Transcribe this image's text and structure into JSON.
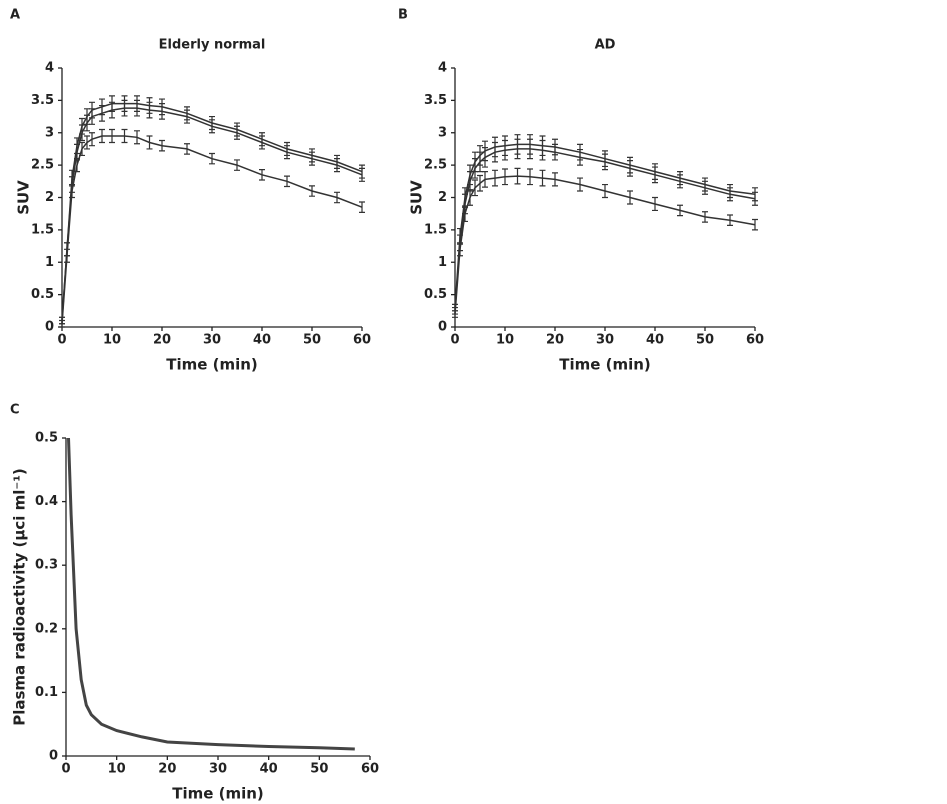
{
  "chart_data": [
    {
      "type": "line",
      "panel": "A",
      "title": "Elderly normal",
      "xlabel": "Time (min)",
      "ylabel": "SUV",
      "x": [
        0,
        1,
        2,
        3,
        4,
        5,
        6,
        8,
        10,
        12.5,
        15,
        17.5,
        20,
        25,
        30,
        35,
        40,
        45,
        50,
        55,
        60
      ],
      "xlim": [
        0,
        60
      ],
      "xticks": [
        0,
        10,
        20,
        30,
        40,
        50,
        60
      ],
      "ylim": [
        0,
        4
      ],
      "yticks": [
        0,
        0.5,
        1,
        1.5,
        2,
        2.5,
        3,
        3.5,
        4
      ],
      "series": [
        {
          "color": "#333333",
          "values": [
            0.1,
            1.2,
            2.3,
            2.8,
            3.1,
            3.25,
            3.35,
            3.4,
            3.45,
            3.45,
            3.45,
            3.42,
            3.4,
            3.3,
            3.15,
            3.05,
            2.9,
            2.75,
            2.65,
            2.55,
            2.4
          ],
          "errors": [
            0.05,
            0.1,
            0.12,
            0.12,
            0.12,
            0.12,
            0.12,
            0.12,
            0.12,
            0.12,
            0.12,
            0.12,
            0.12,
            0.1,
            0.1,
            0.1,
            0.1,
            0.1,
            0.1,
            0.1,
            0.1
          ]
        },
        {
          "color": "#333333",
          "values": [
            0.1,
            1.2,
            2.2,
            2.7,
            3.0,
            3.15,
            3.25,
            3.3,
            3.35,
            3.38,
            3.38,
            3.35,
            3.33,
            3.25,
            3.1,
            3.0,
            2.85,
            2.7,
            2.6,
            2.5,
            2.35
          ],
          "errors": [
            0.05,
            0.1,
            0.12,
            0.12,
            0.12,
            0.12,
            0.12,
            0.12,
            0.12,
            0.12,
            0.12,
            0.12,
            0.12,
            0.1,
            0.1,
            0.1,
            0.1,
            0.1,
            0.1,
            0.1,
            0.1
          ]
        },
        {
          "color": "#333333",
          "values": [
            0.05,
            1.1,
            2.1,
            2.5,
            2.75,
            2.85,
            2.9,
            2.95,
            2.95,
            2.95,
            2.93,
            2.85,
            2.8,
            2.75,
            2.6,
            2.5,
            2.35,
            2.25,
            2.1,
            2.0,
            1.85
          ],
          "errors": [
            0.05,
            0.1,
            0.1,
            0.1,
            0.1,
            0.1,
            0.1,
            0.1,
            0.1,
            0.1,
            0.1,
            0.1,
            0.08,
            0.08,
            0.08,
            0.08,
            0.08,
            0.08,
            0.08,
            0.08,
            0.08
          ]
        }
      ]
    },
    {
      "type": "line",
      "panel": "B",
      "title": "AD",
      "xlabel": "Time (min)",
      "ylabel": "SUV",
      "x": [
        0,
        1,
        2,
        3,
        4,
        5,
        6,
        8,
        10,
        12.5,
        15,
        17.5,
        20,
        25,
        30,
        35,
        40,
        45,
        50,
        55,
        60
      ],
      "xlim": [
        0,
        60
      ],
      "xticks": [
        0,
        10,
        20,
        30,
        40,
        50,
        60
      ],
      "ylim": [
        0,
        4
      ],
      "yticks": [
        0,
        0.5,
        1,
        1.5,
        2,
        2.5,
        3,
        3.5,
        4
      ],
      "series": [
        {
          "color": "#333333",
          "values": [
            0.3,
            1.4,
            2.0,
            2.35,
            2.55,
            2.65,
            2.72,
            2.78,
            2.8,
            2.82,
            2.82,
            2.8,
            2.78,
            2.7,
            2.6,
            2.5,
            2.4,
            2.3,
            2.2,
            2.1,
            2.05
          ],
          "errors": [
            0.05,
            0.12,
            0.15,
            0.15,
            0.15,
            0.15,
            0.15,
            0.15,
            0.15,
            0.15,
            0.15,
            0.15,
            0.12,
            0.12,
            0.12,
            0.12,
            0.12,
            0.1,
            0.1,
            0.1,
            0.1
          ]
        },
        {
          "color": "#333333",
          "values": [
            0.25,
            1.3,
            1.9,
            2.25,
            2.45,
            2.55,
            2.62,
            2.7,
            2.73,
            2.75,
            2.75,
            2.73,
            2.7,
            2.62,
            2.55,
            2.45,
            2.35,
            2.25,
            2.15,
            2.05,
            1.98
          ],
          "errors": [
            0.05,
            0.12,
            0.15,
            0.15,
            0.15,
            0.15,
            0.15,
            0.15,
            0.15,
            0.15,
            0.15,
            0.15,
            0.12,
            0.12,
            0.12,
            0.12,
            0.12,
            0.1,
            0.1,
            0.1,
            0.1
          ]
        },
        {
          "color": "#333333",
          "values": [
            0.2,
            1.2,
            1.75,
            2.0,
            2.15,
            2.22,
            2.28,
            2.3,
            2.32,
            2.33,
            2.32,
            2.3,
            2.28,
            2.2,
            2.1,
            2.0,
            1.9,
            1.8,
            1.7,
            1.65,
            1.58
          ],
          "errors": [
            0.05,
            0.1,
            0.12,
            0.12,
            0.12,
            0.12,
            0.12,
            0.12,
            0.12,
            0.12,
            0.12,
            0.12,
            0.1,
            0.1,
            0.1,
            0.1,
            0.1,
            0.08,
            0.08,
            0.08,
            0.08
          ]
        }
      ]
    },
    {
      "type": "line",
      "panel": "C",
      "xlabel": "Time (min)",
      "ylabel": "Plasma radioactivity (μci ml⁻¹)",
      "x": [
        0.5,
        1,
        2,
        3,
        4,
        5,
        7,
        10,
        15,
        20,
        30,
        40,
        50,
        57
      ],
      "xlim": [
        0,
        60
      ],
      "xticks": [
        0,
        10,
        20,
        30,
        40,
        50,
        60
      ],
      "ylim": [
        0,
        0.5
      ],
      "yticks": [
        0,
        0.1,
        0.2,
        0.3,
        0.4,
        0.5
      ],
      "series": [
        {
          "color": "#444444",
          "values": [
            0.5,
            0.38,
            0.2,
            0.12,
            0.08,
            0.065,
            0.05,
            0.04,
            0.03,
            0.022,
            0.018,
            0.015,
            0.013,
            0.011
          ]
        }
      ]
    }
  ]
}
